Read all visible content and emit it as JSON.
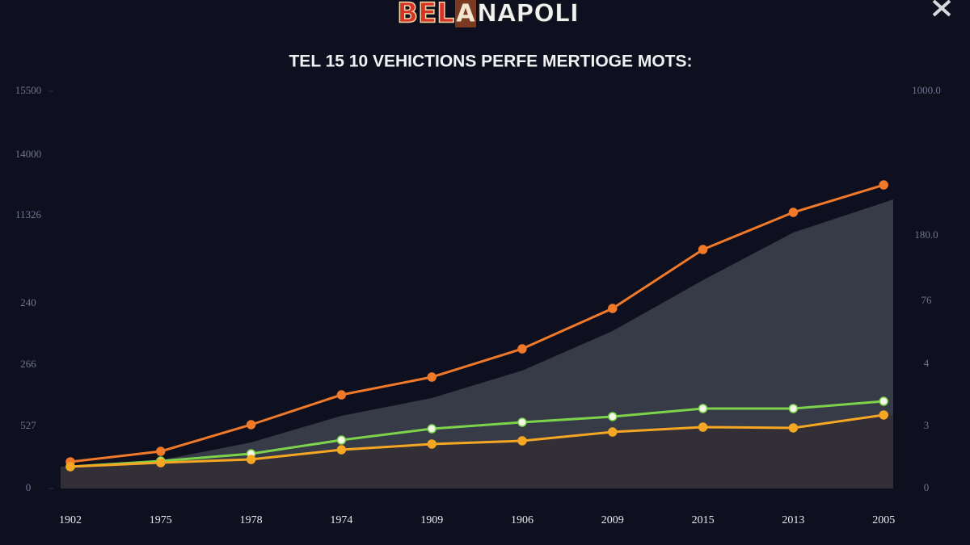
{
  "logo": {
    "left": "BEL",
    "middle": "A",
    "right": "NAPOLI"
  },
  "chart_data": {
    "type": "line",
    "title": "TEL 15 10 VEHICTIONS PERFE MERTIOGE MOTS:",
    "categories": [
      "1902",
      "1975",
      "1978",
      "1974",
      "1909",
      "1906",
      "2009",
      "2015",
      "2013",
      "2005"
    ],
    "ylim": [
      0,
      15500
    ],
    "yticks": [
      0,
      15500
    ],
    "y_extra_labels": [
      "14000",
      "11326",
      "240",
      "266",
      "527"
    ],
    "y2_labels": [
      "1000.0",
      "180.0",
      "76",
      "4",
      "3",
      "0"
    ],
    "areas": [
      {
        "color": "#363b47",
        "values": [
          851,
          1103,
          1796,
          2835,
          3528,
          4599,
          6143,
          8127,
          9986,
          11277
        ]
      },
      {
        "color": "#332f36",
        "values": [
          851,
          1008,
          1134,
          1512,
          1733,
          1859,
          2205,
          2394,
          2363,
          2867
        ]
      }
    ],
    "series": [
      {
        "color": "#f07a2a",
        "marker": "#f07a2a",
        "values": [
          1040,
          1449,
          2489,
          3654,
          4347,
          5450,
          7025,
          9324,
          10773,
          11844
        ]
      },
      {
        "color": "#7dd44a",
        "marker": "#f2f5e8",
        "values": [
          851,
          1071,
          1355,
          1890,
          2331,
          2583,
          2804,
          3119,
          3119,
          3402
        ]
      },
      {
        "color": "#f5a623",
        "marker": "#f5a623",
        "values": [
          851,
          1008,
          1134,
          1512,
          1733,
          1859,
          2205,
          2394,
          2363,
          2867
        ]
      }
    ]
  }
}
